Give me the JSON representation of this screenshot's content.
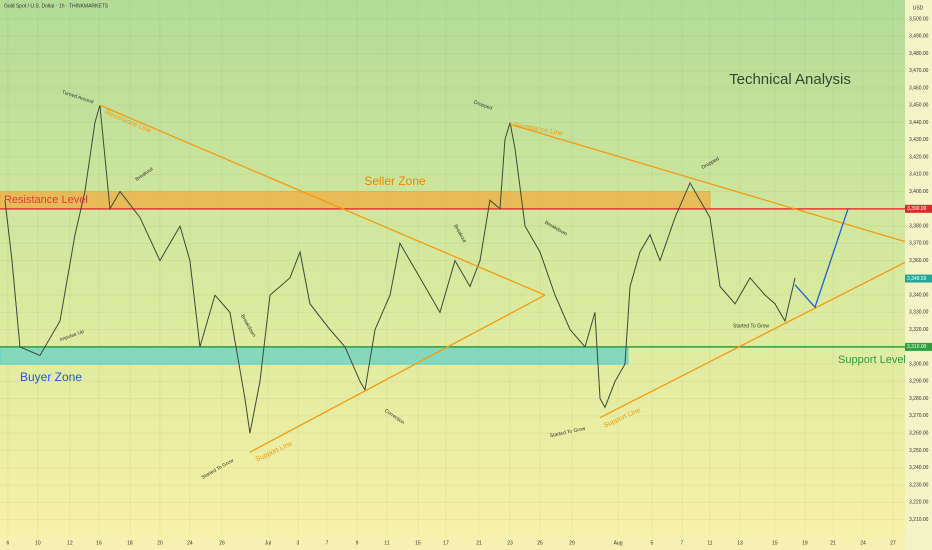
{
  "chart_data": {
    "type": "line",
    "title": "Gold Spot / U.S. Dollar · 1h · THINKMARKETS",
    "currency": "USD",
    "x": [
      -0.2,
      0.27,
      0.8,
      2.13,
      3.47,
      4.47,
      5.13,
      5.8,
      6.13,
      6.8,
      7.47,
      8.8,
      10.13,
      11.47,
      12.13,
      12.8,
      13.8,
      14.8,
      15.8,
      16.13,
      16.8,
      17.47,
      18.8,
      19.47,
      20.13,
      21.47,
      22.47,
      23.47,
      23.8,
      24.47,
      25.47,
      26.13,
      27.47,
      28.8,
      29.8,
      30.8,
      31.47,
      32.13,
      32.8,
      33.13,
      33.47,
      33.8,
      34.47,
      35.47,
      36.47,
      37.47,
      38.47,
      39.13,
      39.47,
      39.8,
      40.47,
      41.13,
      41.47,
      42.13,
      42.8,
      43.47,
      44.47,
      45.47,
      46.13,
      46.8,
      47.47,
      48.47,
      49.47,
      50.47,
      51.13,
      51.8,
      52.47
    ],
    "series": [
      {
        "name": "Gold Spot",
        "color": "#3b4a3b",
        "values": [
          3395,
          3360,
          3310,
          3305,
          3325,
          3375,
          3400,
          3440,
          3450,
          3390,
          3400,
          3385,
          3360,
          3380,
          3360,
          3310,
          3340,
          3330,
          3280,
          3260,
          3290,
          3340,
          3350,
          3365,
          3335,
          3320,
          3310,
          3290,
          3285,
          3320,
          3340,
          3370,
          3350,
          3330,
          3360,
          3345,
          3360,
          3395,
          3390,
          3430,
          3440,
          3425,
          3380,
          3365,
          3340,
          3320,
          3310,
          3330,
          3280,
          3275,
          3290,
          3300,
          3345,
          3365,
          3375,
          3360,
          3385,
          3405,
          3395,
          3385,
          3345,
          3335,
          3350,
          3340,
          3335,
          3325,
          3350
        ]
      }
    ],
    "xlim": [
      -0.53,
      59.8
    ],
    "ylim": [
      3201,
      3511
    ],
    "xticks": [
      {
        "value": 0,
        "label": "6"
      },
      {
        "value": 2,
        "label": "10"
      },
      {
        "value": 4.13,
        "label": "12"
      },
      {
        "value": 6.07,
        "label": "16"
      },
      {
        "value": 8.13,
        "label": "18"
      },
      {
        "value": 10.13,
        "label": "20"
      },
      {
        "value": 12.13,
        "label": "24"
      },
      {
        "value": 14.27,
        "label": "26"
      },
      {
        "value": 17.33,
        "label": "Jul"
      },
      {
        "value": 19.33,
        "label": "3"
      },
      {
        "value": 21.27,
        "label": "7"
      },
      {
        "value": 23.27,
        "label": "9"
      },
      {
        "value": 25.27,
        "label": "11"
      },
      {
        "value": 27.33,
        "label": "15"
      },
      {
        "value": 29.2,
        "label": "17"
      },
      {
        "value": 31.4,
        "label": "21"
      },
      {
        "value": 33.47,
        "label": "23"
      },
      {
        "value": 35.47,
        "label": "25"
      },
      {
        "value": 37.6,
        "label": "29"
      },
      {
        "value": 40.67,
        "label": "Aug"
      },
      {
        "value": 42.93,
        "label": "5"
      },
      {
        "value": 44.93,
        "label": "7"
      },
      {
        "value": 46.8,
        "label": "11"
      },
      {
        "value": 48.8,
        "label": "13"
      },
      {
        "value": 51.13,
        "label": "15"
      },
      {
        "value": 53.13,
        "label": "19"
      },
      {
        "value": 55,
        "label": "21"
      },
      {
        "value": 57,
        "label": "24"
      },
      {
        "value": 59,
        "label": "27"
      }
    ],
    "yticks": [
      {
        "value": 3500,
        "label": "3,500.00"
      },
      {
        "value": 3490,
        "label": "3,490.00"
      },
      {
        "value": 3480,
        "label": "3,480.00"
      },
      {
        "value": 3470,
        "label": "3,470.00"
      },
      {
        "value": 3460,
        "label": "3,460.00"
      },
      {
        "value": 3450,
        "label": "3,450.00"
      },
      {
        "value": 3440,
        "label": "3,440.00"
      },
      {
        "value": 3430,
        "label": "3,430.00"
      },
      {
        "value": 3420,
        "label": "3,420.00"
      },
      {
        "value": 3410,
        "label": "3,410.00"
      },
      {
        "value": 3400,
        "label": "3,400.00"
      },
      {
        "value": 3380,
        "label": "3,380.00"
      },
      {
        "value": 3370,
        "label": "3,370.00"
      },
      {
        "value": 3360,
        "label": "3,360.00"
      },
      {
        "value": 3340,
        "label": "3,340.00"
      },
      {
        "value": 3330,
        "label": "3,330.00"
      },
      {
        "value": 3320,
        "label": "3,320.00"
      },
      {
        "value": 3300,
        "label": "3,300.00"
      },
      {
        "value": 3290,
        "label": "3,290.00"
      },
      {
        "value": 3280,
        "label": "3,280.00"
      },
      {
        "value": 3270,
        "label": "3,270.00"
      },
      {
        "value": 3260,
        "label": "3,260.00"
      },
      {
        "value": 3250,
        "label": "3,250.00"
      },
      {
        "value": 3240,
        "label": "3,240.00"
      },
      {
        "value": 3230,
        "label": "3,230.00"
      },
      {
        "value": 3220,
        "label": "3,220.00"
      },
      {
        "value": 3210,
        "label": "3,210.00"
      }
    ],
    "price_labels": [
      {
        "value": 3390,
        "label": "3,390.00",
        "color": "#d32f2f"
      },
      {
        "value": 3349.59,
        "label": "3,349.59",
        "color": "#26a69a"
      },
      {
        "value": 3310,
        "label": "3,310.00",
        "color": "#2e9e3e"
      }
    ],
    "zones": [
      {
        "name": "Seller Zone",
        "color": "#f2a93b",
        "x": [
          -0.53,
          46.8
        ],
        "y": [
          3390,
          3400
        ]
      },
      {
        "name": "Buyer Zone",
        "color": "#5fd0c8",
        "x": [
          -0.53,
          41.33
        ],
        "y": [
          3300,
          3310
        ]
      }
    ],
    "levels": [
      {
        "name": "Resistance Level",
        "color": "#e53935",
        "value": 3390
      },
      {
        "name": "Support Level",
        "color": "#2e9e3e",
        "value": 3310
      }
    ],
    "trend_lines": [
      {
        "name": "Resistance Line",
        "color": "#f39c12",
        "x": [
          6.13,
          35.8
        ],
        "y": [
          3450,
          3340
        ]
      },
      {
        "name": "Support Line",
        "color": "#f39c12",
        "x": [
          16.13,
          35.8
        ],
        "y": [
          3249,
          3340
        ]
      },
      {
        "name": "Resistance Line",
        "color": "#f39c12",
        "x": [
          33.47,
          59.8
        ],
        "y": [
          3439,
          3371
        ]
      },
      {
        "name": "Support Line",
        "color": "#f39c12",
        "x": [
          39.47,
          59.8
        ],
        "y": [
          3269,
          3359
        ]
      },
      {
        "color": "#1e63d6",
        "x": [
          52.47,
          53.8,
          56
        ],
        "y": [
          3346,
          3333,
          3390
        ]
      }
    ],
    "headline": "Technical Analysis",
    "notes": [
      "Turned Around",
      "Breakout",
      "Impulse Up",
      "Breakdown",
      "Started To Grow",
      "Correction",
      "Breakout",
      "Dropped",
      "Breakdown",
      "Started To Grow",
      "Dropped",
      "Started To Grow"
    ]
  }
}
